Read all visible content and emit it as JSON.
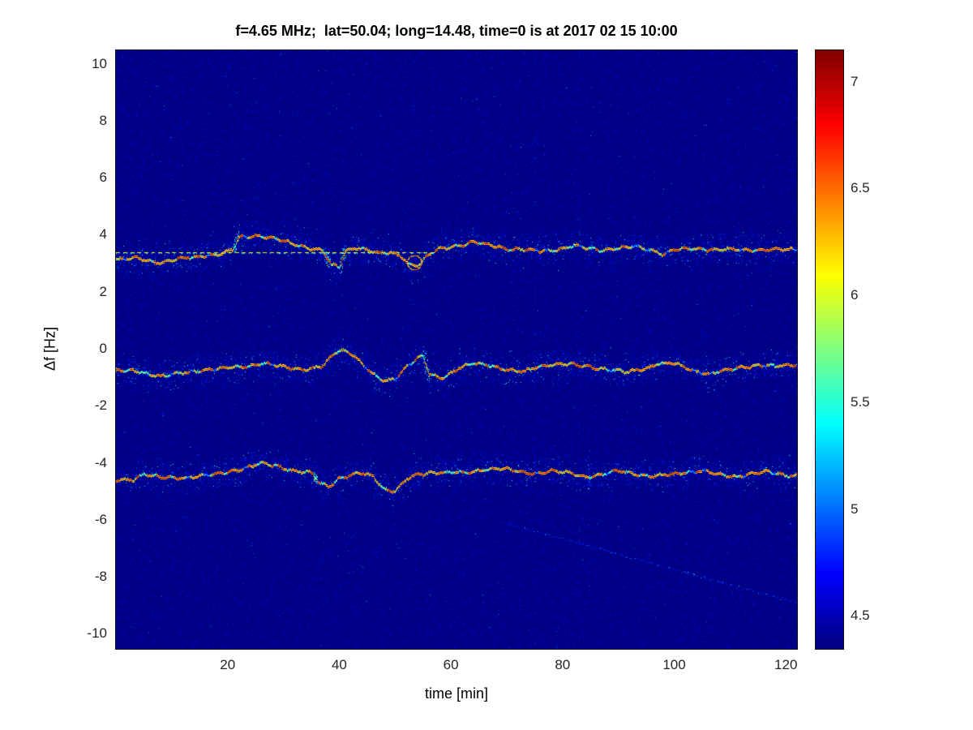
{
  "chart_data": {
    "type": "heatmap",
    "title": "f=4.65 MHz;  lat=50.04; long=14.48, time=0 is at 2017 02 15 10:00",
    "xlabel": "time [min]",
    "ylabel": "Δf [Hz]",
    "xlim": [
      0,
      122
    ],
    "ylim": [
      -10.5,
      10.5
    ],
    "x_ticks": [
      20,
      40,
      60,
      80,
      100,
      120
    ],
    "y_ticks": [
      10,
      8,
      6,
      4,
      2,
      0,
      -2,
      -4,
      -6,
      -8,
      -10
    ],
    "colormap": "jet",
    "background_value": 4.37,
    "background_color": "#000090",
    "colorbar": {
      "min": 4.35,
      "max": 7.15,
      "ticks": [
        7,
        6.5,
        6,
        5.5,
        5,
        4.5
      ]
    },
    "traces": [
      {
        "name": "upper-doppler-trace",
        "points": [
          [
            0,
            3.15
          ],
          [
            4,
            3.2
          ],
          [
            8,
            3.05
          ],
          [
            12,
            3.2
          ],
          [
            16,
            3.3
          ],
          [
            19,
            3.35
          ],
          [
            21,
            3.5
          ],
          [
            22,
            3.95
          ],
          [
            25,
            4.0
          ],
          [
            28,
            3.9
          ],
          [
            31,
            3.75
          ],
          [
            34,
            3.6
          ],
          [
            37,
            3.45
          ],
          [
            38.5,
            2.95
          ],
          [
            40,
            2.9
          ],
          [
            41,
            3.45
          ],
          [
            43,
            3.6
          ],
          [
            45,
            3.5
          ],
          [
            47,
            3.35
          ],
          [
            49,
            3.4
          ],
          [
            51,
            3.3
          ],
          [
            52.5,
            3.0
          ],
          [
            54,
            2.95
          ],
          [
            56,
            3.3
          ],
          [
            58,
            3.55
          ],
          [
            61,
            3.65
          ],
          [
            64,
            3.75
          ],
          [
            67,
            3.65
          ],
          [
            70,
            3.55
          ],
          [
            73,
            3.5
          ],
          [
            76,
            3.45
          ],
          [
            79,
            3.5
          ],
          [
            82,
            3.65
          ],
          [
            84,
            3.55
          ],
          [
            87,
            3.5
          ],
          [
            90,
            3.55
          ],
          [
            93,
            3.6
          ],
          [
            96,
            3.5
          ],
          [
            98,
            3.35
          ],
          [
            100,
            3.5
          ],
          [
            104,
            3.55
          ],
          [
            108,
            3.5
          ],
          [
            112,
            3.5
          ],
          [
            116,
            3.5
          ],
          [
            120,
            3.5
          ],
          [
            122,
            3.5
          ]
        ]
      },
      {
        "name": "middle-doppler-trace",
        "points": [
          [
            0,
            -0.75
          ],
          [
            4,
            -0.75
          ],
          [
            8,
            -0.95
          ],
          [
            11,
            -0.85
          ],
          [
            14,
            -0.75
          ],
          [
            18,
            -0.7
          ],
          [
            22,
            -0.6
          ],
          [
            26,
            -0.5
          ],
          [
            30,
            -0.6
          ],
          [
            34,
            -0.7
          ],
          [
            37,
            -0.6
          ],
          [
            39,
            -0.15
          ],
          [
            40,
            0.0
          ],
          [
            42,
            -0.1
          ],
          [
            44,
            -0.5
          ],
          [
            46,
            -0.9
          ],
          [
            48,
            -1.1
          ],
          [
            50,
            -1.0
          ],
          [
            52,
            -0.6
          ],
          [
            54,
            -0.3
          ],
          [
            55,
            -0.25
          ],
          [
            56,
            -0.85
          ],
          [
            58,
            -1.0
          ],
          [
            60,
            -0.8
          ],
          [
            62,
            -0.6
          ],
          [
            64,
            -0.5
          ],
          [
            67,
            -0.55
          ],
          [
            70,
            -0.7
          ],
          [
            73,
            -0.8
          ],
          [
            76,
            -0.55
          ],
          [
            79,
            -0.5
          ],
          [
            82,
            -0.55
          ],
          [
            85,
            -0.6
          ],
          [
            88,
            -0.7
          ],
          [
            91,
            -0.8
          ],
          [
            94,
            -0.7
          ],
          [
            97,
            -0.5
          ],
          [
            100,
            -0.5
          ],
          [
            103,
            -0.7
          ],
          [
            106,
            -0.85
          ],
          [
            109,
            -0.75
          ],
          [
            112,
            -0.6
          ],
          [
            115,
            -0.55
          ],
          [
            118,
            -0.6
          ],
          [
            122,
            -0.5
          ]
        ]
      },
      {
        "name": "lower-doppler-trace",
        "points": [
          [
            0,
            -4.6
          ],
          [
            3,
            -4.55
          ],
          [
            5,
            -4.35
          ],
          [
            8,
            -4.5
          ],
          [
            11,
            -4.5
          ],
          [
            14,
            -4.45
          ],
          [
            17,
            -4.4
          ],
          [
            20,
            -4.3
          ],
          [
            23,
            -4.15
          ],
          [
            26,
            -4.0
          ],
          [
            29,
            -4.1
          ],
          [
            32,
            -4.25
          ],
          [
            35,
            -4.35
          ],
          [
            36.5,
            -4.7
          ],
          [
            38,
            -4.8
          ],
          [
            40,
            -4.5
          ],
          [
            42,
            -4.4
          ],
          [
            44,
            -4.35
          ],
          [
            46,
            -4.45
          ],
          [
            48,
            -4.9
          ],
          [
            50,
            -4.95
          ],
          [
            52,
            -4.55
          ],
          [
            54,
            -4.4
          ],
          [
            57,
            -4.3
          ],
          [
            60,
            -4.3
          ],
          [
            63,
            -4.35
          ],
          [
            66,
            -4.2
          ],
          [
            69,
            -4.15
          ],
          [
            72,
            -4.3
          ],
          [
            75,
            -4.35
          ],
          [
            78,
            -4.25
          ],
          [
            81,
            -4.35
          ],
          [
            84,
            -4.45
          ],
          [
            87,
            -4.4
          ],
          [
            90,
            -4.25
          ],
          [
            93,
            -4.35
          ],
          [
            96,
            -4.45
          ],
          [
            99,
            -4.4
          ],
          [
            102,
            -4.3
          ],
          [
            105,
            -4.25
          ],
          [
            108,
            -4.4
          ],
          [
            111,
            -4.45
          ],
          [
            114,
            -4.35
          ],
          [
            117,
            -4.3
          ],
          [
            120,
            -4.4
          ],
          [
            122,
            -4.4
          ]
        ]
      }
    ],
    "reference_line": {
      "y": 3.4,
      "t_start": 0,
      "t_end": 57.5,
      "style": "dashed",
      "value": 6.05
    },
    "ring_feature": {
      "t": 53.5,
      "y": 3.05,
      "r": 0.25
    },
    "diagonal_streak": {
      "from": [
        70,
        -6.1
      ],
      "to": [
        122,
        -8.9
      ]
    },
    "noise": {
      "speckle_count": 16000,
      "vertical_streaks": [
        75,
        83
      ]
    }
  }
}
